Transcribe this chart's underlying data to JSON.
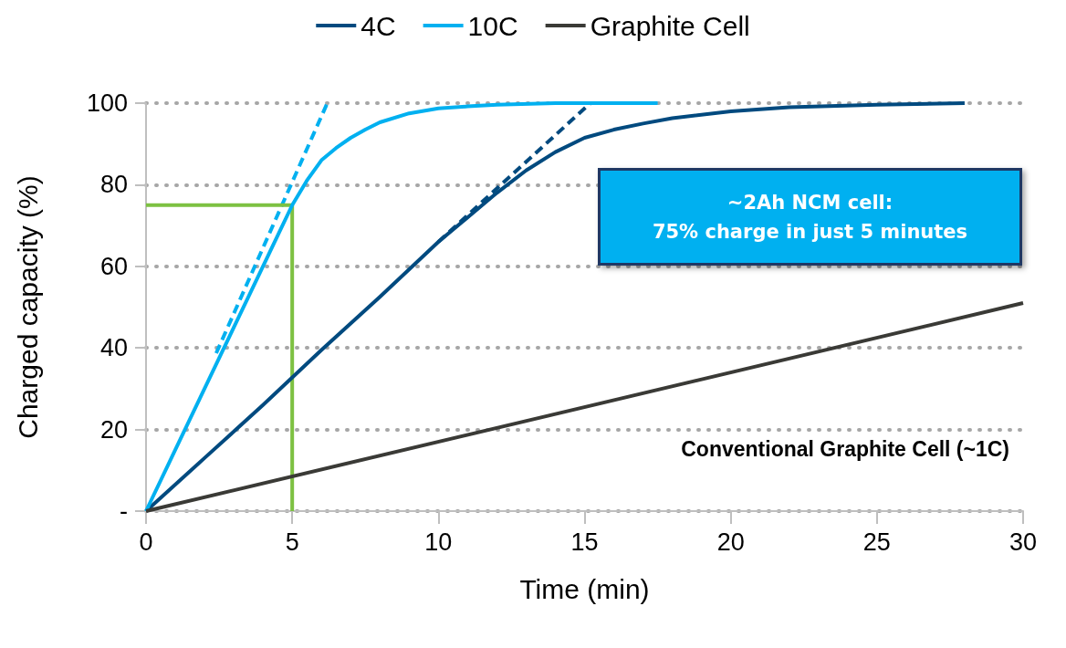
{
  "chart_data": {
    "type": "line",
    "xlabel": "Time (min)",
    "ylabel": "Charged capacity (%)",
    "xlim": [
      0,
      30
    ],
    "xticks": [
      0,
      5,
      10,
      15,
      20,
      25,
      30
    ],
    "ylim": [
      0,
      100
    ],
    "yticks": [
      {
        "value": 0,
        "label": "-"
      },
      20,
      40,
      60,
      80,
      100
    ],
    "grid": "y",
    "legend": "top",
    "marker": "none",
    "annotations": [
      "~2Ah NCM cell:\n75% charge in just 5 minutes",
      "Conventional Graphite Cell (~1C)"
    ],
    "series": [
      {
        "name": "4C",
        "color": "#004a7f",
        "line_style": "solid",
        "x": [
          0,
          2,
          4,
          6,
          8,
          10,
          11,
          12,
          13,
          14,
          15,
          16,
          17,
          18,
          20,
          22,
          25,
          28
        ],
        "values": [
          0,
          13,
          26,
          39.5,
          52.5,
          66,
          72,
          78,
          83.5,
          88,
          91.5,
          93.5,
          95,
          96.3,
          98,
          99,
          99.6,
          100
        ]
      },
      {
        "name": "10C",
        "color": "#00b0f0",
        "line_style": "solid",
        "x": [
          0,
          1,
          2,
          3,
          4,
          5,
          5.5,
          6,
          6.5,
          7,
          7.5,
          8,
          9,
          10,
          11,
          12,
          14,
          17.5
        ],
        "values": [
          0,
          15,
          30,
          45,
          60,
          75,
          81,
          86,
          89,
          91.5,
          93.5,
          95.3,
          97.5,
          98.7,
          99.2,
          99.6,
          100,
          100
        ]
      },
      {
        "name": "Graphite Cell",
        "color": "#3a3a36",
        "line_style": "solid",
        "x": [
          0,
          30
        ],
        "values": [
          0,
          51
        ]
      },
      {
        "color": "#004a7f",
        "line_style": "dashed",
        "x": [
          10,
          15.2
        ],
        "values": [
          66,
          100
        ]
      },
      {
        "color": "#00b0f0",
        "line_style": "dashed",
        "x": [
          2.4,
          6.2
        ],
        "values": [
          38.7,
          100
        ]
      },
      {
        "color": "#7dc142",
        "line_style": "solid",
        "x": [
          0,
          5,
          5
        ],
        "values": [
          75,
          75,
          0
        ]
      }
    ]
  }
}
